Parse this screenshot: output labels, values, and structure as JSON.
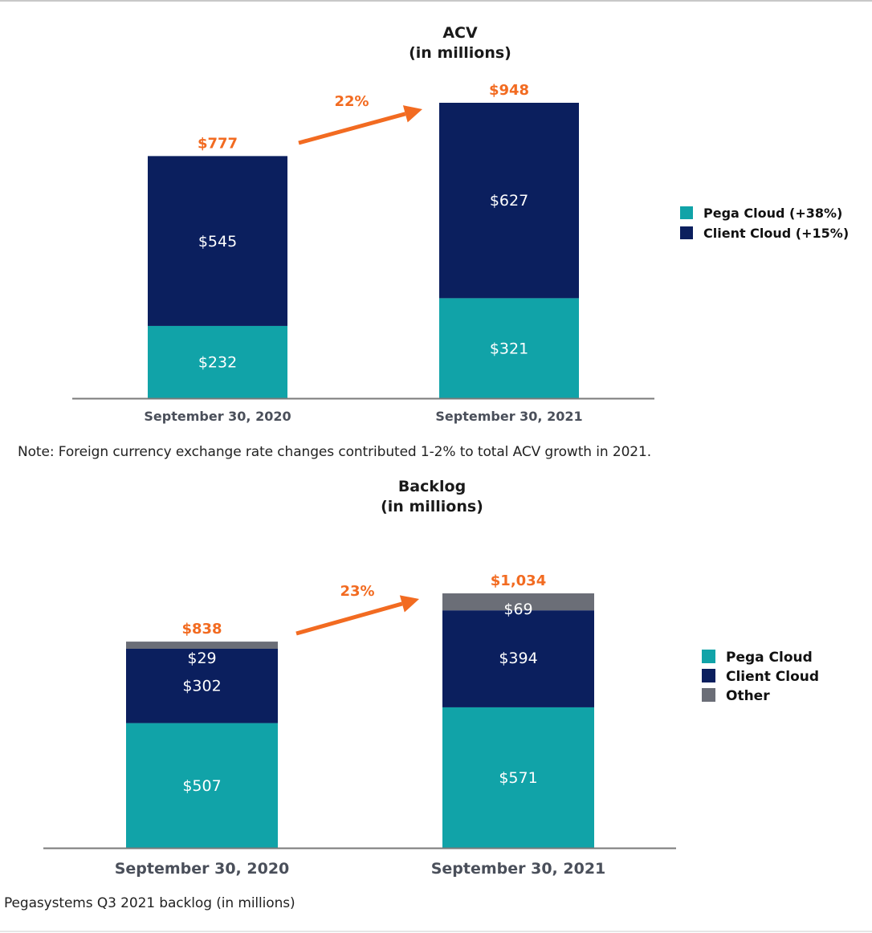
{
  "chart_data": [
    {
      "id": "acv",
      "type": "bar",
      "stacked": true,
      "title": "ACV",
      "subtitle": "(in millions)",
      "categories": [
        "September 30, 2020",
        "September 30, 2021"
      ],
      "series": [
        {
          "name": "Pega Cloud (+38%)",
          "color": "#11a3a8",
          "values": [
            232,
            321
          ],
          "labels": [
            "$232",
            "$321"
          ]
        },
        {
          "name": "Client Cloud (+15%)",
          "color": "#0b1f5e",
          "values": [
            545,
            627
          ],
          "labels": [
            "$545",
            "$627"
          ]
        }
      ],
      "totals": [
        777,
        948
      ],
      "total_labels": [
        "$777",
        "$948"
      ],
      "growth_label": "22%",
      "legend_position": "right",
      "xlabel": "",
      "ylabel": "",
      "ylim": [
        0,
        948
      ],
      "grid": false
    },
    {
      "id": "backlog",
      "type": "bar",
      "stacked": true,
      "title": "Backlog",
      "subtitle": "(in millions)",
      "categories": [
        "September 30, 2020",
        "September 30, 2021"
      ],
      "series": [
        {
          "name": "Pega Cloud",
          "color": "#11a3a8",
          "values": [
            507,
            571
          ],
          "labels": [
            "$507",
            "$571"
          ]
        },
        {
          "name": "Client Cloud",
          "color": "#0b1f5e",
          "values": [
            302,
            394
          ],
          "labels": [
            "$302",
            "$394"
          ]
        },
        {
          "name": "Other",
          "color": "#6b6e77",
          "values": [
            29,
            69
          ],
          "labels": [
            "$29",
            "$69"
          ]
        }
      ],
      "totals": [
        838,
        1034
      ],
      "total_labels": [
        "$838",
        "$1,034"
      ],
      "growth_label": "23%",
      "legend_position": "right",
      "xlabel": "",
      "ylabel": "",
      "ylim": [
        0,
        1034
      ],
      "grid": false
    }
  ],
  "colors": {
    "accent_orange": "#f26b21",
    "axis": "#7a7a7a",
    "tick_text": "#4a4f5a",
    "title_text": "#1a1a1a"
  },
  "notes": {
    "acv_note": "Note: Foreign currency exchange rate changes contributed 1-2% to total ACV growth in 2021.",
    "backlog_caption": "Pegasystems Q3 2021 backlog (in millions)"
  }
}
